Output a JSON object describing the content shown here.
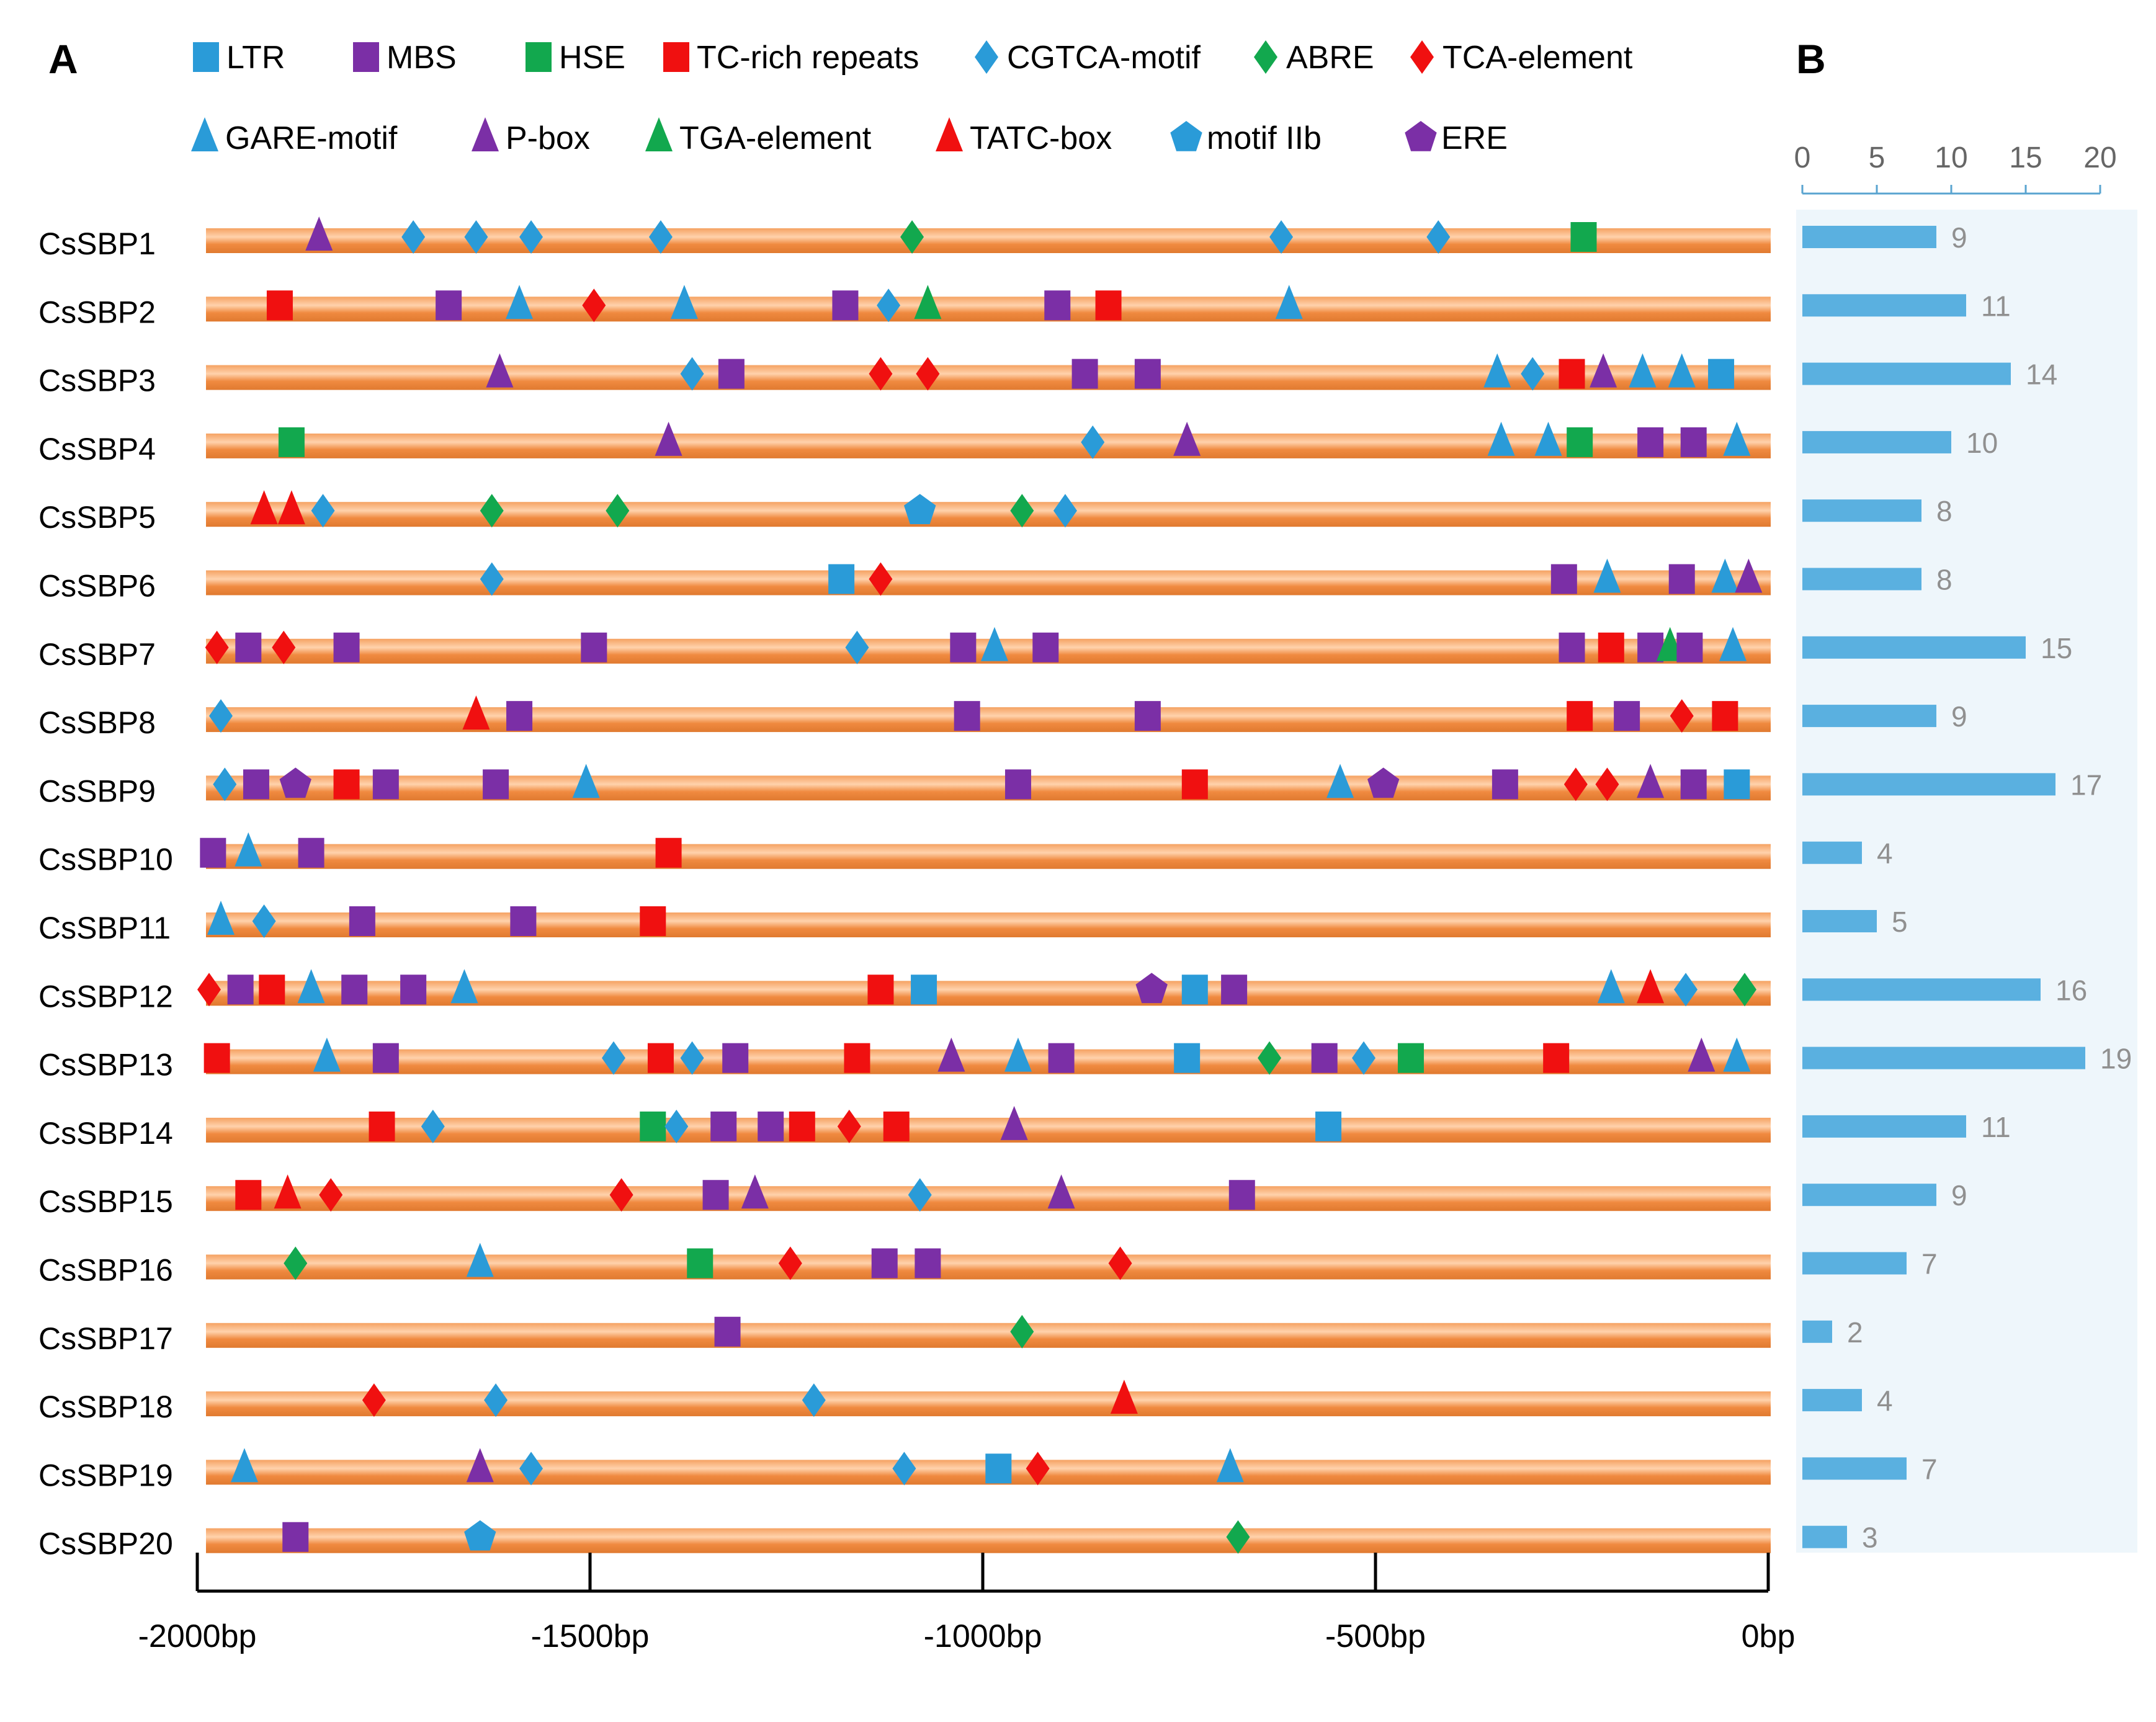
{
  "panels": {
    "a_label": "A",
    "b_label": "B"
  },
  "colors": {
    "blue": "#2a9bd8",
    "purple": "#7b2fa6",
    "green": "#12a84e",
    "red": "#f01010",
    "orange": "#f08a40",
    "orange_light": "#ffc79a",
    "bar": "#5ab0e0",
    "panel_b_bg": "#eef6fb",
    "axis_b": "#5aa4d0",
    "count_text": "#909090"
  },
  "legend": [
    {
      "key": "LTR",
      "label": "LTR",
      "shape": "square",
      "color": "blue"
    },
    {
      "key": "MBS",
      "label": "MBS",
      "shape": "square",
      "color": "purple"
    },
    {
      "key": "HSE",
      "label": "HSE",
      "shape": "square",
      "color": "green"
    },
    {
      "key": "TC",
      "label": "TC-rich repeats",
      "shape": "square",
      "color": "red"
    },
    {
      "key": "CGTCA",
      "label": "CGTCA-motif",
      "shape": "diamond",
      "color": "blue"
    },
    {
      "key": "ABRE",
      "label": "ABRE",
      "shape": "diamond",
      "color": "green"
    },
    {
      "key": "TCA",
      "label": "TCA-element",
      "shape": "diamond",
      "color": "red"
    },
    {
      "key": "GARE",
      "label": "GARE-motif",
      "shape": "triangle",
      "color": "blue"
    },
    {
      "key": "PBOX",
      "label": "P-box",
      "shape": "triangle",
      "color": "purple"
    },
    {
      "key": "TGA",
      "label": "TGA-element",
      "shape": "triangle",
      "color": "green"
    },
    {
      "key": "TATC",
      "label": "TATC-box",
      "shape": "triangle",
      "color": "red"
    },
    {
      "key": "IIB",
      "label": "motif IIb",
      "shape": "pentagon",
      "color": "blue"
    },
    {
      "key": "ERE",
      "label": "ERE",
      "shape": "pentagon",
      "color": "purple"
    }
  ],
  "chart_data": [
    {
      "type": "scatter",
      "title": "",
      "xlabel": "",
      "ylabel": "",
      "xlim": [
        -2000,
        0
      ],
      "x_ticks": [
        -2000,
        -1500,
        -1000,
        -500,
        0
      ],
      "x_tick_labels": [
        "-2000bp",
        "-1500bp",
        "-1000bp",
        "-500bp",
        "0bp"
      ],
      "genes": [
        {
          "name": "CsSBP1",
          "elements": [
            [
              "PBOX",
              -1845
            ],
            [
              "CGTCA",
              -1725
            ],
            [
              "CGTCA",
              -1645
            ],
            [
              "CGTCA",
              -1575
            ],
            [
              "CGTCA",
              -1410
            ],
            [
              "ABRE",
              -1090
            ],
            [
              "CGTCA",
              -620
            ],
            [
              "CGTCA",
              -420
            ],
            [
              "HSE",
              -235
            ]
          ]
        },
        {
          "name": "CsSBP2",
          "elements": [
            [
              "TC",
              -1895
            ],
            [
              "MBS",
              -1680
            ],
            [
              "GARE",
              -1590
            ],
            [
              "TCA",
              -1495
            ],
            [
              "GARE",
              -1380
            ],
            [
              "MBS",
              -1175
            ],
            [
              "CGTCA",
              -1120
            ],
            [
              "TGA",
              -1070
            ],
            [
              "MBS",
              -905
            ],
            [
              "TC",
              -840
            ],
            [
              "GARE",
              -610
            ]
          ]
        },
        {
          "name": "CsSBP3",
          "elements": [
            [
              "PBOX",
              -1615
            ],
            [
              "CGTCA",
              -1370
            ],
            [
              "MBS",
              -1320
            ],
            [
              "TCA",
              -1130
            ],
            [
              "TCA",
              -1070
            ],
            [
              "MBS",
              -870
            ],
            [
              "MBS",
              -790
            ],
            [
              "GARE",
              -345
            ],
            [
              "CGTCA",
              -300
            ],
            [
              "TC",
              -250
            ],
            [
              "PBOX",
              -210
            ],
            [
              "GARE",
              -160
            ],
            [
              "GARE",
              -110
            ],
            [
              "LTR",
              -60
            ]
          ]
        },
        {
          "name": "CsSBP4",
          "elements": [
            [
              "HSE",
              -1880
            ],
            [
              "PBOX",
              -1400
            ],
            [
              "CGTCA",
              -860
            ],
            [
              "PBOX",
              -740
            ],
            [
              "GARE",
              -340
            ],
            [
              "GARE",
              -280
            ],
            [
              "HSE",
              -240
            ],
            [
              "MBS",
              -150
            ],
            [
              "MBS",
              -95
            ],
            [
              "GARE",
              -40
            ]
          ]
        },
        {
          "name": "CsSBP5",
          "elements": [
            [
              "TATC",
              -1915
            ],
            [
              "TATC",
              -1880
            ],
            [
              "CGTCA",
              -1840
            ],
            [
              "ABRE",
              -1625
            ],
            [
              "ABRE",
              -1465
            ],
            [
              "IIB",
              -1080
            ],
            [
              "ABRE",
              -950
            ],
            [
              "CGTCA",
              -895
            ]
          ]
        },
        {
          "name": "CsSBP6",
          "elements": [
            [
              "CGTCA",
              -1625
            ],
            [
              "LTR",
              -1180
            ],
            [
              "TCA",
              -1130
            ],
            [
              "MBS",
              -260
            ],
            [
              "GARE",
              -205
            ],
            [
              "MBS",
              -110
            ],
            [
              "GARE",
              -55
            ],
            [
              "PBOX",
              -25
            ]
          ]
        },
        {
          "name": "CsSBP7",
          "elements": [
            [
              "TCA",
              -1975
            ],
            [
              "MBS",
              -1935
            ],
            [
              "TCA",
              -1890
            ],
            [
              "MBS",
              -1810
            ],
            [
              "MBS",
              -1495
            ],
            [
              "CGTCA",
              -1160
            ],
            [
              "MBS",
              -1025
            ],
            [
              "GARE",
              -985
            ],
            [
              "MBS",
              -920
            ],
            [
              "MBS",
              -250
            ],
            [
              "TC",
              -200
            ],
            [
              "MBS",
              -150
            ],
            [
              "TGA",
              -125
            ],
            [
              "MBS",
              -100
            ],
            [
              "GARE",
              -45
            ]
          ]
        },
        {
          "name": "CsSBP8",
          "elements": [
            [
              "CGTCA",
              -1970
            ],
            [
              "TATC",
              -1645
            ],
            [
              "MBS",
              -1590
            ],
            [
              "MBS",
              -1020
            ],
            [
              "MBS",
              -790
            ],
            [
              "TC",
              -240
            ],
            [
              "MBS",
              -180
            ],
            [
              "TCA",
              -110
            ],
            [
              "TC",
              -55
            ]
          ]
        },
        {
          "name": "CsSBP9",
          "elements": [
            [
              "CGTCA",
              -1965
            ],
            [
              "MBS",
              -1925
            ],
            [
              "ERE",
              -1875
            ],
            [
              "TC",
              -1810
            ],
            [
              "MBS",
              -1760
            ],
            [
              "MBS",
              -1620
            ],
            [
              "GARE",
              -1505
            ],
            [
              "MBS",
              -955
            ],
            [
              "TC",
              -730
            ],
            [
              "GARE",
              -545
            ],
            [
              "ERE",
              -490
            ],
            [
              "MBS",
              -335
            ],
            [
              "TCA",
              -245
            ],
            [
              "TCA",
              -205
            ],
            [
              "PBOX",
              -150
            ],
            [
              "MBS",
              -95
            ],
            [
              "LTR",
              -40
            ]
          ]
        },
        {
          "name": "CsSBP10",
          "elements": [
            [
              "MBS",
              -1980
            ],
            [
              "GARE",
              -1935
            ],
            [
              "MBS",
              -1855
            ],
            [
              "TC",
              -1400
            ]
          ]
        },
        {
          "name": "CsSBP11",
          "elements": [
            [
              "GARE",
              -1970
            ],
            [
              "CGTCA",
              -1915
            ],
            [
              "MBS",
              -1790
            ],
            [
              "MBS",
              -1585
            ],
            [
              "TC",
              -1420
            ]
          ]
        },
        {
          "name": "CsSBP12",
          "elements": [
            [
              "TCA",
              -1985
            ],
            [
              "MBS",
              -1945
            ],
            [
              "TC",
              -1905
            ],
            [
              "GARE",
              -1855
            ],
            [
              "MBS",
              -1800
            ],
            [
              "MBS",
              -1725
            ],
            [
              "GARE",
              -1660
            ],
            [
              "TC",
              -1130
            ],
            [
              "LTR",
              -1075
            ],
            [
              "ERE",
              -785
            ],
            [
              "LTR",
              -730
            ],
            [
              "MBS",
              -680
            ],
            [
              "GARE",
              -200
            ],
            [
              "TATC",
              -150
            ],
            [
              "CGTCA",
              -105
            ],
            [
              "ABRE",
              -30
            ]
          ]
        },
        {
          "name": "CsSBP13",
          "elements": [
            [
              "TC",
              -1975
            ],
            [
              "GARE",
              -1835
            ],
            [
              "MBS",
              -1760
            ],
            [
              "CGTCA",
              -1470
            ],
            [
              "TC",
              -1410
            ],
            [
              "CGTCA",
              -1370
            ],
            [
              "MBS",
              -1315
            ],
            [
              "TC",
              -1160
            ],
            [
              "PBOX",
              -1040
            ],
            [
              "GARE",
              -955
            ],
            [
              "MBS",
              -900
            ],
            [
              "LTR",
              -740
            ],
            [
              "ABRE",
              -635
            ],
            [
              "MBS",
              -565
            ],
            [
              "CGTCA",
              -515
            ],
            [
              "HSE",
              -455
            ],
            [
              "TC",
              -270
            ],
            [
              "PBOX",
              -85
            ],
            [
              "GARE",
              -40
            ]
          ]
        },
        {
          "name": "CsSBP14",
          "elements": [
            [
              "TC",
              -1765
            ],
            [
              "CGTCA",
              -1700
            ],
            [
              "HSE",
              -1420
            ],
            [
              "CGTCA",
              -1390
            ],
            [
              "MBS",
              -1330
            ],
            [
              "MBS",
              -1270
            ],
            [
              "TC",
              -1230
            ],
            [
              "TCA",
              -1170
            ],
            [
              "TC",
              -1110
            ],
            [
              "PBOX",
              -960
            ],
            [
              "LTR",
              -560
            ]
          ]
        },
        {
          "name": "CsSBP15",
          "elements": [
            [
              "TC",
              -1935
            ],
            [
              "TATC",
              -1885
            ],
            [
              "TCA",
              -1830
            ],
            [
              "TCA",
              -1460
            ],
            [
              "MBS",
              -1340
            ],
            [
              "PBOX",
              -1290
            ],
            [
              "CGTCA",
              -1080
            ],
            [
              "PBOX",
              -900
            ],
            [
              "MBS",
              -670
            ]
          ]
        },
        {
          "name": "CsSBP16",
          "elements": [
            [
              "ABRE",
              -1875
            ],
            [
              "GARE",
              -1640
            ],
            [
              "HSE",
              -1360
            ],
            [
              "TCA",
              -1245
            ],
            [
              "MBS",
              -1125
            ],
            [
              "MBS",
              -1070
            ],
            [
              "TCA",
              -825
            ]
          ]
        },
        {
          "name": "CsSBP17",
          "elements": [
            [
              "MBS",
              -1325
            ],
            [
              "ABRE",
              -950
            ]
          ]
        },
        {
          "name": "CsSBP18",
          "elements": [
            [
              "TCA",
              -1775
            ],
            [
              "CGTCA",
              -1620
            ],
            [
              "CGTCA",
              -1215
            ],
            [
              "TATC",
              -820
            ]
          ]
        },
        {
          "name": "CsSBP19",
          "elements": [
            [
              "GARE",
              -1940
            ],
            [
              "PBOX",
              -1640
            ],
            [
              "CGTCA",
              -1575
            ],
            [
              "CGTCA",
              -1100
            ],
            [
              "LTR",
              -980
            ],
            [
              "TCA",
              -930
            ],
            [
              "GARE",
              -685
            ]
          ]
        },
        {
          "name": "CsSBP20",
          "elements": [
            [
              "MBS",
              -1875
            ],
            [
              "IIB",
              -1640
            ],
            [
              "ABRE",
              -675
            ]
          ]
        }
      ]
    },
    {
      "type": "bar",
      "title": "",
      "xlabel": "",
      "ylabel": "",
      "orientation": "horizontal",
      "xlim": [
        0,
        20
      ],
      "x_ticks": [
        0,
        5,
        10,
        15,
        20
      ],
      "x_tick_labels": [
        "0",
        "5",
        "10",
        "15",
        "20"
      ],
      "categories": [
        "CsSBP1",
        "CsSBP2",
        "CsSBP3",
        "CsSBP4",
        "CsSBP5",
        "CsSBP6",
        "CsSBP7",
        "CsSBP8",
        "CsSBP9",
        "CsSBP10",
        "CsSBP11",
        "CsSBP12",
        "CsSBP13",
        "CsSBP14",
        "CsSBP15",
        "CsSBP16",
        "CsSBP17",
        "CsSBP18",
        "CsSBP19",
        "CsSBP20"
      ],
      "values": [
        9,
        11,
        14,
        10,
        8,
        8,
        15,
        9,
        17,
        4,
        5,
        16,
        19,
        11,
        9,
        7,
        2,
        4,
        7,
        3
      ],
      "value_labels": [
        "9",
        "11",
        "14",
        "10",
        "8",
        "8",
        "15",
        "9",
        "17",
        "4",
        "5",
        "16",
        "19",
        "11",
        "9",
        "7",
        "2",
        "4",
        "7",
        "3"
      ]
    }
  ]
}
